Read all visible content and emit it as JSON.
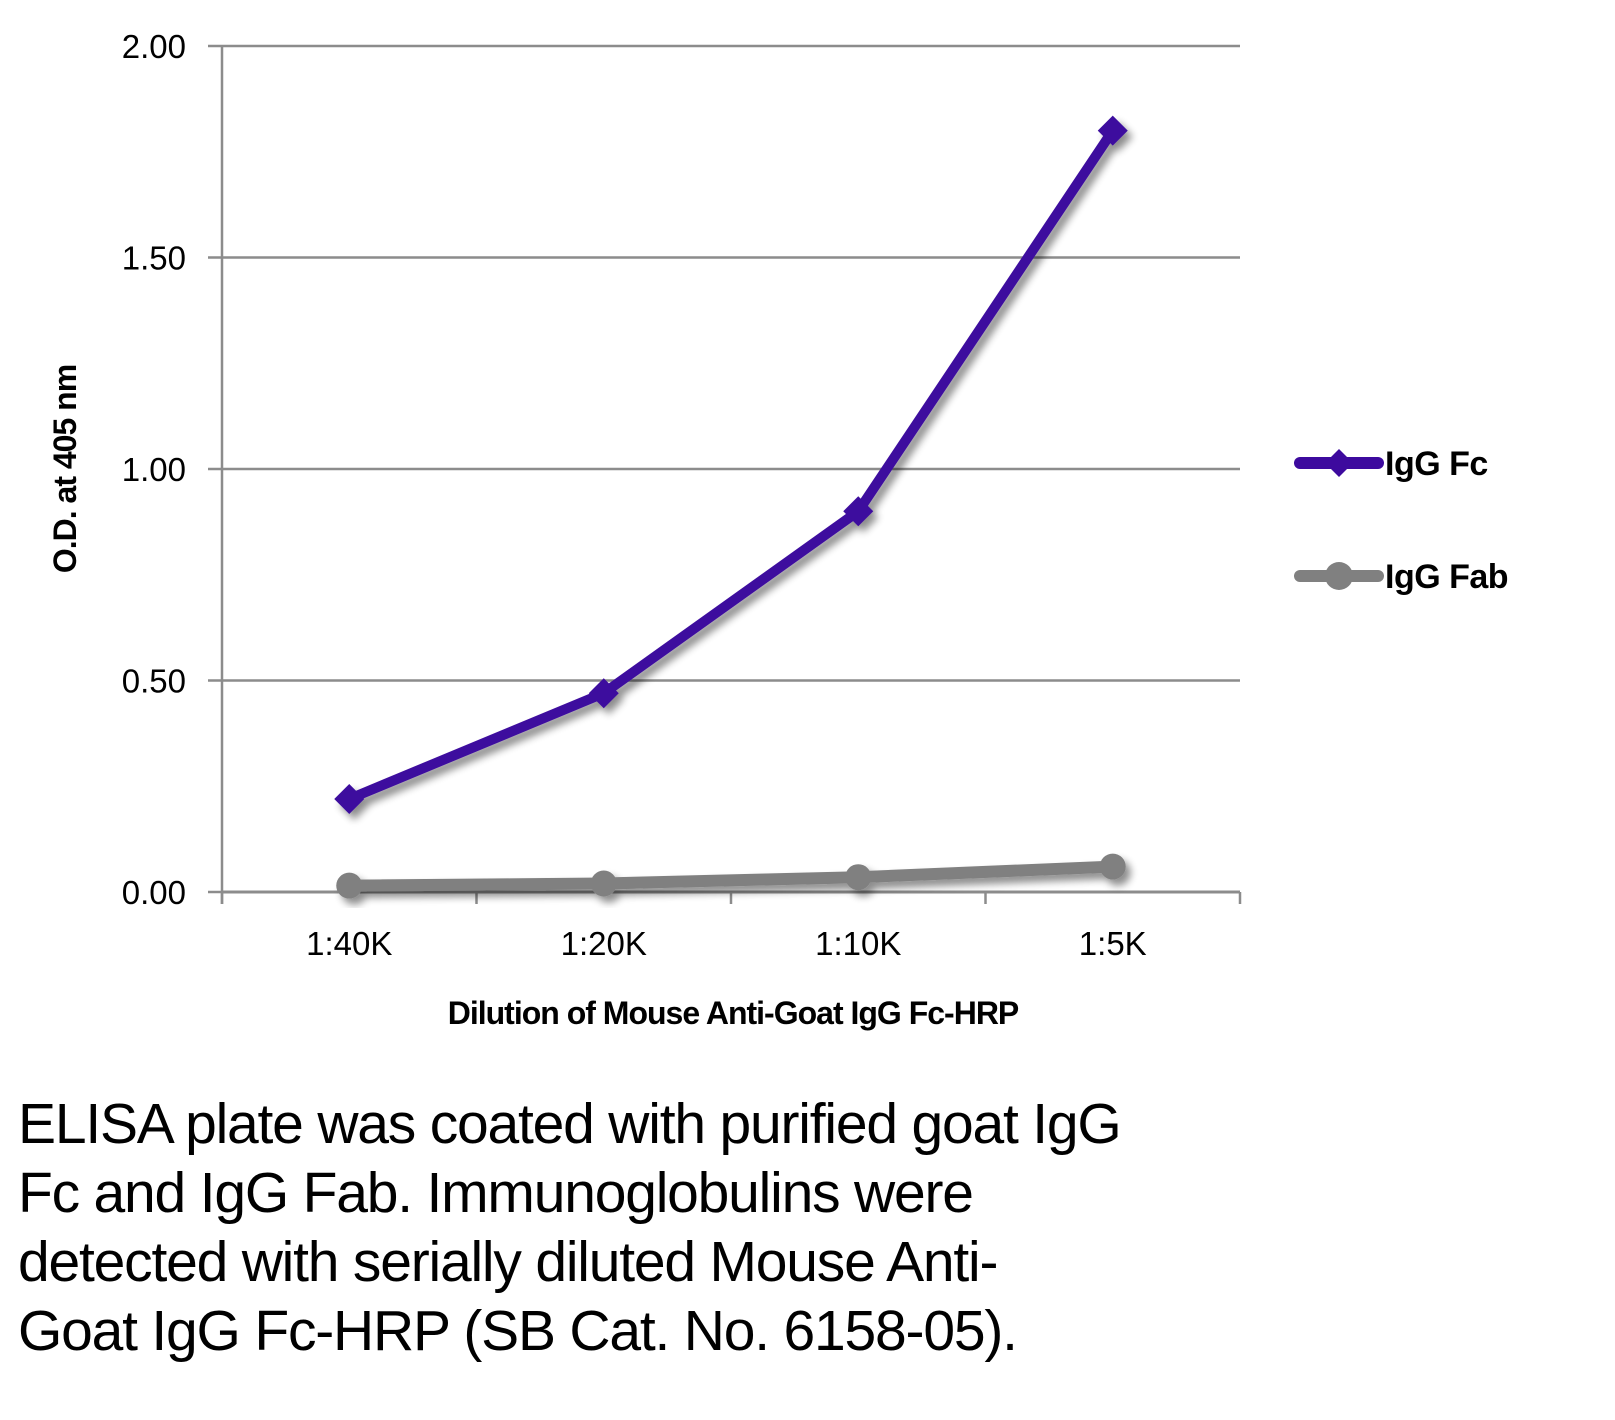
{
  "chart_data": {
    "type": "line",
    "title": "",
    "xlabel": "Dilution of Mouse Anti-Goat IgG Fc-HRP",
    "ylabel": "O.D. at 405 nm",
    "categories": [
      "1:40K",
      "1:20K",
      "1:10K",
      "1:5K"
    ],
    "ylim": [
      0,
      2.0
    ],
    "yticks": [
      "0.00",
      "0.50",
      "1.00",
      "1.50",
      "2.00"
    ],
    "ytick_values": [
      0,
      0.5,
      1.0,
      1.5,
      2.0
    ],
    "grid": true,
    "legend_position": "right",
    "series": [
      {
        "name": "IgG Fc",
        "marker": "diamond",
        "color": "#3d0a9e",
        "values": [
          0.22,
          0.47,
          0.9,
          1.8
        ]
      },
      {
        "name": "IgG Fab",
        "marker": "circle",
        "color": "#808080",
        "values": [
          0.015,
          0.02,
          0.035,
          0.06
        ]
      }
    ]
  },
  "caption": "ELISA plate was coated with purified goat IgG Fc and IgG Fab.  Immunoglobulins were detected with serially diluted Mouse Anti-Goat IgG Fc-HRP (SB Cat. No. 6158-05).",
  "caption_lines": [
    "ELISA plate was coated with purified goat IgG",
    "Fc and IgG Fab.  Immunoglobulins were",
    "detected with serially diluted Mouse Anti-",
    "Goat IgG Fc-HRP (SB Cat. No. 6158-05)."
  ]
}
